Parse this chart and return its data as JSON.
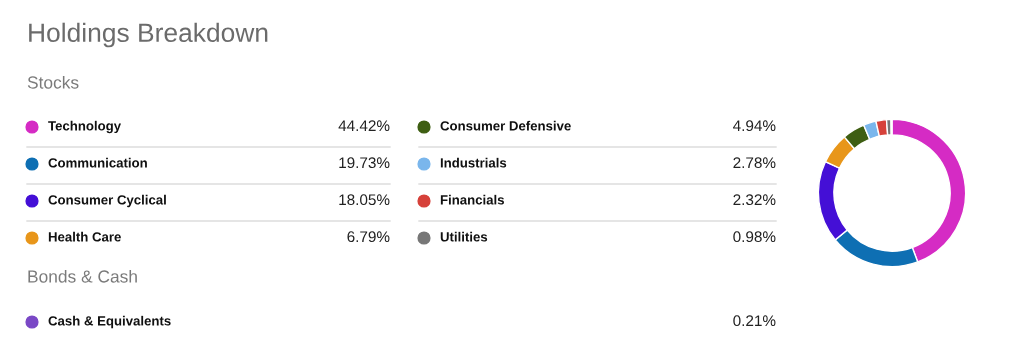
{
  "chart_data": {
    "type": "donut",
    "title": "Holdings Breakdown",
    "annotations": [
      "Stocks",
      "Bonds & Cash"
    ],
    "categories": [
      "Technology",
      "Communication",
      "Consumer Cyclical",
      "Health Care",
      "Consumer Defensive",
      "Industrials",
      "Financials",
      "Utilities",
      "Cash & Equivalents"
    ],
    "values": [
      44.42,
      19.73,
      18.05,
      6.79,
      4.94,
      2.78,
      2.32,
      0.98,
      0.21
    ],
    "value_labels": [
      "44.42%",
      "19.73%",
      "18.05%",
      "6.79%",
      "4.94%",
      "2.78%",
      "2.32%",
      "0.98%",
      "0.21%"
    ],
    "colors": [
      "#d52bc4",
      "#0e6fb3",
      "#440fd6",
      "#e8961a",
      "#3e5e12",
      "#7ab6ec",
      "#d6413a",
      "#777777",
      "#7a48c6"
    ],
    "legend": "left"
  }
}
